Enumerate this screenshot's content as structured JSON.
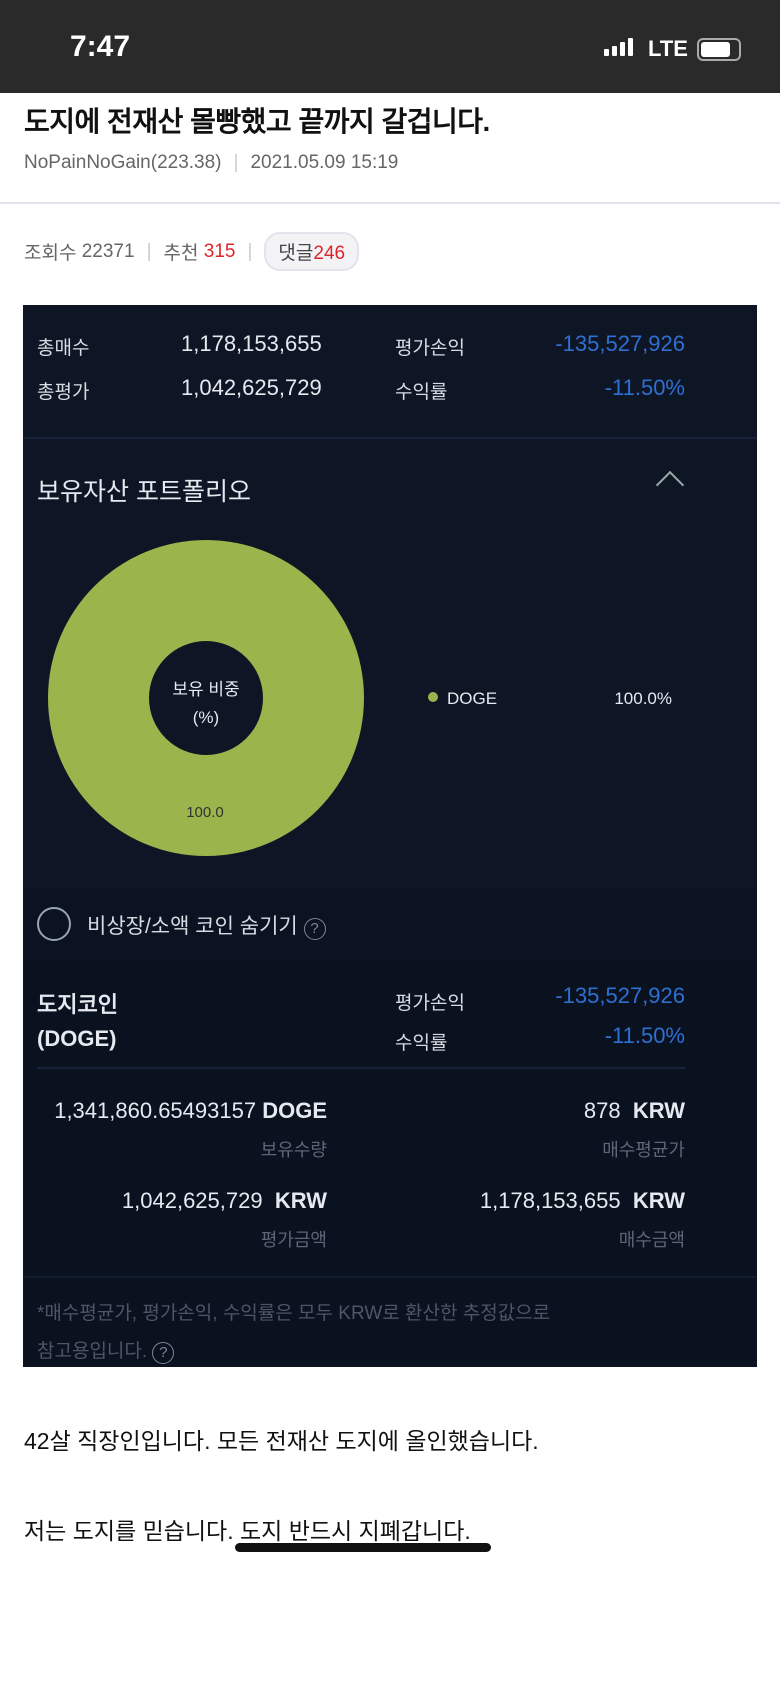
{
  "status_bar": {
    "time": "7:47",
    "network": "LTE"
  },
  "post": {
    "title": "도지에 전재산 몰빵했고 끝까지 갈겁니다.",
    "author": "NoPainNoGain(223.38)",
    "date": "2021.05.09 15:19",
    "views_label": "조회수",
    "views": "22371",
    "recommend_label": "추천",
    "recommend": "315",
    "comments_label": "댓글",
    "comments": "246"
  },
  "summary": {
    "total_buy_label": "총매수",
    "total_buy": "1,178,153,655",
    "total_eval_label": "총평가",
    "total_eval": "1,042,625,729",
    "pnl_label": "평가손익",
    "pnl": "-135,527,926",
    "rate_label": "수익률",
    "rate": "-11.50%"
  },
  "portfolio": {
    "title": "보유자산 포트폴리오",
    "center_label_1": "보유 비중",
    "center_label_2": "(%)",
    "slice_label": "100.0",
    "legend": [
      {
        "name": "DOGE",
        "percent": "100.0%",
        "color": "#9bb44c"
      }
    ]
  },
  "chart_data": {
    "type": "pie",
    "categories": [
      "DOGE"
    ],
    "values": [
      100.0
    ],
    "colors": [
      "#9bb44c"
    ]
  },
  "hide_option": {
    "label": "비상장/소액 코인 숨기기",
    "help": "?"
  },
  "coin": {
    "name": "도지코인",
    "ticker": "(DOGE)",
    "pnl_label": "평가손익",
    "pnl": "-135,527,926",
    "rate_label": "수익률",
    "rate": "-11.50%",
    "qty": "1,341,860.65493157",
    "qty_unit": "DOGE",
    "qty_label": "보유수량",
    "avg": "878",
    "avg_unit": "KRW",
    "avg_label": "매수평균가",
    "eval": "1,042,625,729",
    "eval_unit": "KRW",
    "eval_label": "평가금액",
    "buy": "1,178,153,655",
    "buy_unit": "KRW",
    "buy_label": "매수금액",
    "note_1": "*매수평균가, 평가손익, 수익률은 모두 KRW로 환산한 추정값으로",
    "note_2": "참고용입니다."
  },
  "body": {
    "line1": "42살 직장인입니다. 모든 전재산 도지에 올인했습니다.",
    "line2": "저는 도지를 믿습니다. 도지 반드시 지폐갑니다."
  }
}
